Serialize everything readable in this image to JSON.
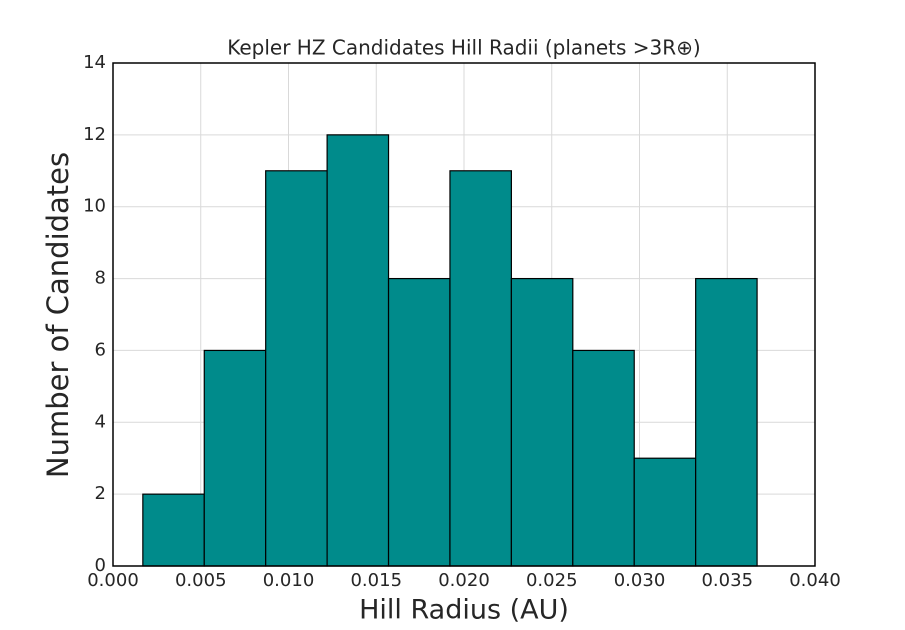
{
  "chart_data": {
    "type": "histogram",
    "title": "Kepler HZ Candidates Hill Radii (planets >3R⊕)",
    "x_label": "Hill Radius (AU)",
    "y_label": "Number of Candidates",
    "bins": [
      0.0017,
      0.0052,
      0.0087,
      0.0122,
      0.0157,
      0.0192,
      0.0227,
      0.0262,
      0.0297,
      0.0332,
      0.0367
    ],
    "values": [
      2,
      6,
      11,
      12,
      8,
      11,
      8,
      6,
      3,
      8
    ],
    "color": "#008b8b",
    "xlim": [
      0,
      0.04
    ],
    "ylim": [
      0,
      14
    ],
    "xticks": [
      {
        "value": 0,
        "label": "0.000"
      },
      {
        "value": 0.005,
        "label": "0.005"
      },
      {
        "value": 0.01,
        "label": "0.010"
      },
      {
        "value": 0.015,
        "label": "0.015"
      },
      {
        "value": 0.02,
        "label": "0.020"
      },
      {
        "value": 0.025,
        "label": "0.025"
      },
      {
        "value": 0.03,
        "label": "0.030"
      },
      {
        "value": 0.035,
        "label": "0.035"
      },
      {
        "value": 0.04,
        "label": "0.040"
      }
    ],
    "yticks": [
      0,
      2,
      4,
      6,
      8,
      10,
      12,
      14
    ],
    "grid": true
  }
}
